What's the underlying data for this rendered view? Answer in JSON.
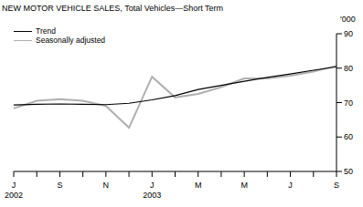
{
  "chart_data": {
    "type": "line",
    "title": "NEW MOTOR VEHICLE SALES, Total Vehicles—Short Term",
    "y_label": "'000",
    "categories": [
      "J\n2002",
      null,
      "S",
      null,
      "N",
      null,
      "J\n2003",
      null,
      "M",
      null,
      "M",
      null,
      "J",
      null,
      "S"
    ],
    "series": [
      {
        "name": "Trend",
        "color": "#000000",
        "values": [
          69.3,
          69.5,
          69.6,
          69.5,
          69.4,
          69.8,
          70.8,
          72.0,
          73.8,
          75.0,
          76.2,
          77.3,
          78.3,
          79.4,
          80.4
        ]
      },
      {
        "name": "Seasonally adjusted",
        "color": "#b0b0b0",
        "values": [
          68.3,
          70.5,
          71.0,
          70.5,
          69.0,
          62.7,
          77.5,
          71.5,
          72.5,
          74.5,
          77.0,
          77.0,
          77.8,
          79.0,
          80.7
        ]
      }
    ],
    "ylim": [
      50,
      90
    ],
    "yticks": [
      50,
      60,
      70,
      80,
      90
    ],
    "legend": "top-left"
  }
}
